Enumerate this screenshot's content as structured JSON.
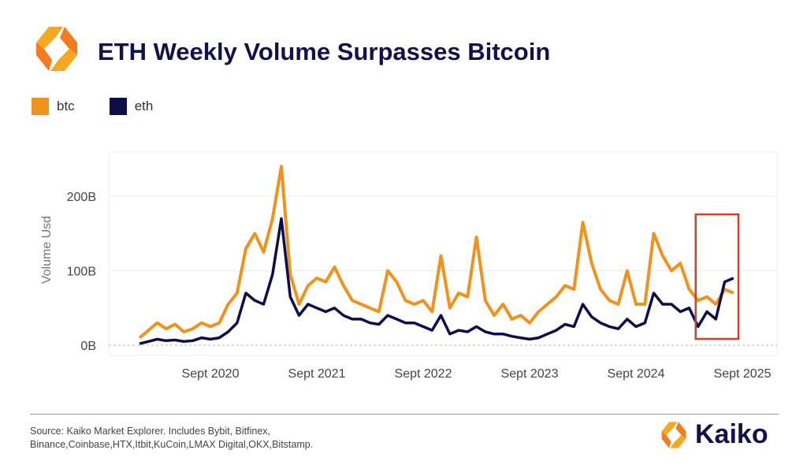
{
  "title": "ETH Weekly Volume Surpasses Bitcoin",
  "brand": "Kaiko",
  "source": "Source: Kaiko Market Explorer. Includes Bybit, Bitfinex, Binance,Coinbase,HTX,Itbit,KuCoin,LMAX Digital,OKX,Bitstamp.",
  "colors": {
    "btc": "#f0931e",
    "eth": "#0d0d4a",
    "highlight": "#e03a24",
    "title": "#12124a"
  },
  "chart_data": {
    "type": "line",
    "title": "ETH Weekly Volume Surpasses Bitcoin",
    "ylabel": "Volume Usd",
    "xlabel": "",
    "ylim": [
      0,
      250
    ],
    "yticks": [
      {
        "v": 0,
        "label": "0B"
      },
      {
        "v": 100,
        "label": "100B"
      },
      {
        "v": 200,
        "label": "200B"
      }
    ],
    "xticks": [
      {
        "v": "2020-09",
        "label": "Sept 2020"
      },
      {
        "v": "2021-09",
        "label": "Sept 2021"
      },
      {
        "v": "2022-09",
        "label": "Sept 2022"
      },
      {
        "v": "2023-09",
        "label": "Sept 2023"
      },
      {
        "v": "2024-09",
        "label": "Sept 2024"
      },
      {
        "v": "2025-09",
        "label": "Sept 2025"
      }
    ],
    "grid": true,
    "legend": "top-left",
    "highlight_range": [
      "2025-04",
      "2025-09"
    ],
    "x": [
      "2020-01",
      "2020-02",
      "2020-03",
      "2020-04",
      "2020-05",
      "2020-06",
      "2020-07",
      "2020-08",
      "2020-09",
      "2020-10",
      "2020-11",
      "2020-12",
      "2021-01",
      "2021-02",
      "2021-03",
      "2021-04",
      "2021-05",
      "2021-06",
      "2021-07",
      "2021-08",
      "2021-09",
      "2021-10",
      "2021-11",
      "2021-12",
      "2022-01",
      "2022-02",
      "2022-03",
      "2022-04",
      "2022-05",
      "2022-06",
      "2022-07",
      "2022-08",
      "2022-09",
      "2022-10",
      "2022-11",
      "2022-12",
      "2023-01",
      "2023-02",
      "2023-03",
      "2023-04",
      "2023-05",
      "2023-06",
      "2023-07",
      "2023-08",
      "2023-09",
      "2023-10",
      "2023-11",
      "2023-12",
      "2024-01",
      "2024-02",
      "2024-03",
      "2024-04",
      "2024-05",
      "2024-06",
      "2024-07",
      "2024-08",
      "2024-09",
      "2024-10",
      "2024-11",
      "2024-12",
      "2025-01",
      "2025-02",
      "2025-03",
      "2025-04",
      "2025-05",
      "2025-06",
      "2025-07",
      "2025-08"
    ],
    "series": [
      {
        "name": "btc",
        "values": [
          10,
          20,
          30,
          22,
          28,
          18,
          22,
          30,
          25,
          30,
          55,
          70,
          130,
          150,
          125,
          170,
          240,
          95,
          55,
          80,
          90,
          85,
          105,
          80,
          60,
          55,
          50,
          45,
          100,
          85,
          60,
          55,
          60,
          45,
          120,
          50,
          70,
          65,
          145,
          60,
          40,
          55,
          35,
          40,
          30,
          45,
          55,
          65,
          80,
          75,
          165,
          110,
          75,
          60,
          55,
          100,
          55,
          55,
          150,
          120,
          100,
          110,
          75,
          60,
          65,
          55,
          75,
          70
        ]
      },
      {
        "name": "eth",
        "values": [
          2,
          5,
          8,
          6,
          7,
          5,
          6,
          10,
          8,
          10,
          18,
          30,
          70,
          60,
          55,
          95,
          170,
          65,
          40,
          55,
          50,
          45,
          50,
          40,
          35,
          35,
          30,
          28,
          40,
          35,
          30,
          30,
          25,
          20,
          40,
          15,
          20,
          18,
          25,
          18,
          15,
          15,
          12,
          10,
          8,
          10,
          15,
          20,
          28,
          25,
          55,
          38,
          30,
          25,
          22,
          35,
          25,
          30,
          70,
          55,
          55,
          45,
          50,
          25,
          45,
          35,
          85,
          90
        ]
      }
    ]
  }
}
